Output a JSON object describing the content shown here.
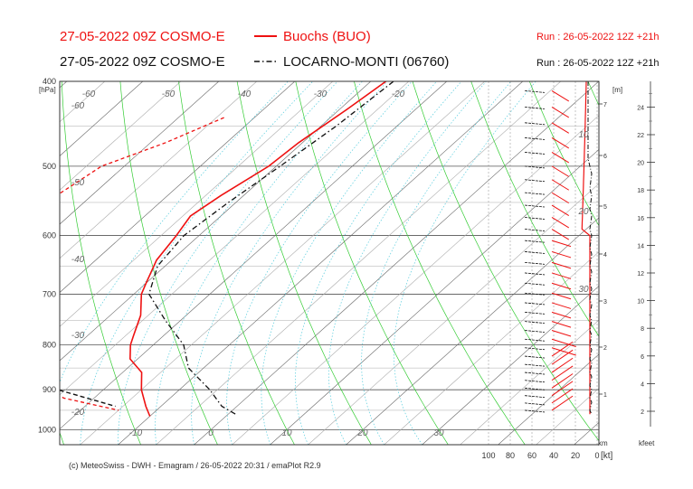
{
  "header": {
    "line1_left": "27-05-2022 09Z COSMO-E",
    "line1_station": "Buochs (BUO)",
    "line1_run": "Run : 26-05-2022 12Z +21h",
    "line2_left": "27-05-2022 09Z COSMO-E",
    "line2_station": "LOCARNO-MONTI (06760)",
    "line2_run": "Run : 26-05-2022 12Z +21h",
    "color_red": "#ee1111",
    "color_black": "#111111"
  },
  "footer": "(c) MeteoSwiss - DWH - Emagram / 26-05-2022  20:31 / emaPlot R2.9",
  "axes": {
    "pressure_unit": "[hPa]",
    "pressure_ticks": [
      400,
      500,
      600,
      700,
      800,
      900,
      1000
    ],
    "temp_labels": [
      "-60",
      "-50",
      "-40",
      "-30",
      "-20",
      "-10",
      "0",
      "10",
      "20",
      "30"
    ],
    "top_temp_labels": [
      "-60",
      "-50",
      "-40",
      "-30",
      "-20"
    ],
    "left_temp_labels": [
      "-60",
      "-50",
      "-40",
      "-30",
      "-20"
    ],
    "km_unit": "[m]",
    "km_ticks": [
      "1",
      "2",
      "3",
      "4",
      "5",
      "6",
      "7"
    ],
    "km_label": "km",
    "kfeet_ticks": [
      "2",
      "4",
      "6",
      "8",
      "10",
      "12",
      "14",
      "16",
      "18",
      "20",
      "22",
      "24"
    ],
    "kfeet_label": "kfeet",
    "wind_ticks": [
      "100",
      "80",
      "60",
      "40",
      "20",
      "0"
    ],
    "wind_unit": "[kt]",
    "wet_bulb_labels": [
      "10",
      "20",
      "30"
    ]
  },
  "chart_data": {
    "type": "line",
    "x_axis": "temperature (skewed)",
    "y_axis": "pressure",
    "ylim": [
      400,
      1040
    ],
    "series": [
      {
        "name": "Buochs (BUO)",
        "kind": "temperature",
        "points": [
          [
            400,
            -28
          ],
          [
            430,
            -29
          ],
          [
            470,
            -30.5
          ],
          [
            500,
            -31
          ],
          [
            540,
            -33
          ],
          [
            570,
            -34
          ],
          [
            600,
            -33
          ],
          [
            640,
            -32
          ],
          [
            680,
            -30
          ],
          [
            700,
            -29
          ],
          [
            740,
            -26
          ],
          [
            780,
            -24
          ],
          [
            800,
            -23
          ],
          [
            830,
            -21
          ],
          [
            860,
            -17.5
          ],
          [
            900,
            -15
          ],
          [
            940,
            -12
          ],
          [
            965,
            -10
          ]
        ]
      },
      {
        "name": "Buochs (BUO)",
        "kind": "dewpoint",
        "points": [
          [
            440,
            -44
          ],
          [
            470,
            -48
          ],
          [
            500,
            -53
          ],
          [
            550,
            -55
          ],
          [
            600,
            -55
          ],
          [
            650,
            -54
          ],
          [
            700,
            -49
          ],
          [
            750,
            -44
          ],
          [
            800,
            -41
          ],
          [
            840,
            -35
          ],
          [
            870,
            -31
          ],
          [
            900,
            -27
          ],
          [
            920,
            -24
          ],
          [
            950,
            -15
          ]
        ]
      },
      {
        "name": "LOCARNO-MONTI (06760)",
        "kind": "temperature",
        "points": [
          [
            400,
            -27
          ],
          [
            450,
            -28
          ],
          [
            500,
            -29.5
          ],
          [
            550,
            -31
          ],
          [
            600,
            -32
          ],
          [
            650,
            -31
          ],
          [
            700,
            -28
          ],
          [
            750,
            -22
          ],
          [
            800,
            -16
          ],
          [
            850,
            -12
          ],
          [
            900,
            -6
          ],
          [
            940,
            -2
          ],
          [
            960,
            1
          ]
        ]
      },
      {
        "name": "LOCARNO-MONTI (06760)",
        "kind": "dewpoint",
        "points": [
          [
            420,
            -78
          ],
          [
            440,
            -86
          ],
          [
            460,
            -92
          ],
          [
            480,
            -96
          ],
          [
            500,
            -100
          ],
          [
            540,
            -86
          ],
          [
            570,
            -75
          ],
          [
            600,
            -67
          ],
          [
            620,
            -66
          ],
          [
            650,
            -67
          ],
          [
            700,
            -63
          ],
          [
            750,
            -55
          ],
          [
            800,
            -48
          ],
          [
            830,
            -41
          ],
          [
            860,
            -34
          ],
          [
            900,
            -26
          ],
          [
            940,
            -16
          ]
        ]
      }
    ]
  }
}
